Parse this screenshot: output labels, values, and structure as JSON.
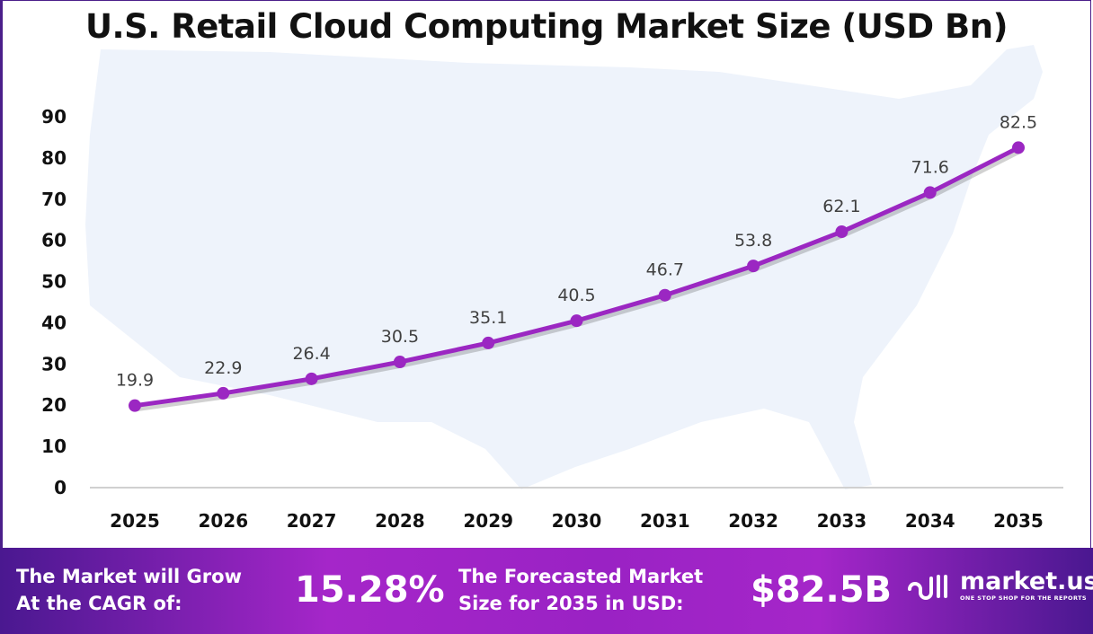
{
  "chart_data": {
    "type": "line",
    "title": "U.S. Retail Cloud Computing Market Size (USD Bn)",
    "categories": [
      "2025",
      "2026",
      "2027",
      "2028",
      "2029",
      "2030",
      "2031",
      "2032",
      "2033",
      "2034",
      "2035"
    ],
    "values": [
      19.9,
      22.9,
      26.4,
      30.5,
      35.1,
      40.5,
      46.7,
      53.8,
      62.1,
      71.6,
      82.5
    ],
    "data_labels": [
      "19.9",
      "22.9",
      "26.4",
      "30.5",
      "35.1",
      "40.5",
      "46.7",
      "53.8",
      "62.1",
      "71.6",
      "82.5"
    ],
    "yticks": [
      "0",
      "10",
      "20",
      "30",
      "40",
      "50",
      "60",
      "70",
      "80",
      "90"
    ],
    "ylim": [
      0,
      90
    ],
    "grid": false,
    "line_color": "#9b27c2",
    "background": "U.S. map silhouette"
  },
  "footer": {
    "cagr_label_1": "The Market will Grow",
    "cagr_label_2": "At the CAGR of:",
    "cagr_value": "15.28%",
    "forecast_label_1": "The Forecasted Market",
    "forecast_label_2": "Size for 2035 in USD:",
    "forecast_value": "$82.5B",
    "brand": "market.us",
    "brand_tagline": "ONE STOP SHOP FOR THE REPORTS"
  }
}
